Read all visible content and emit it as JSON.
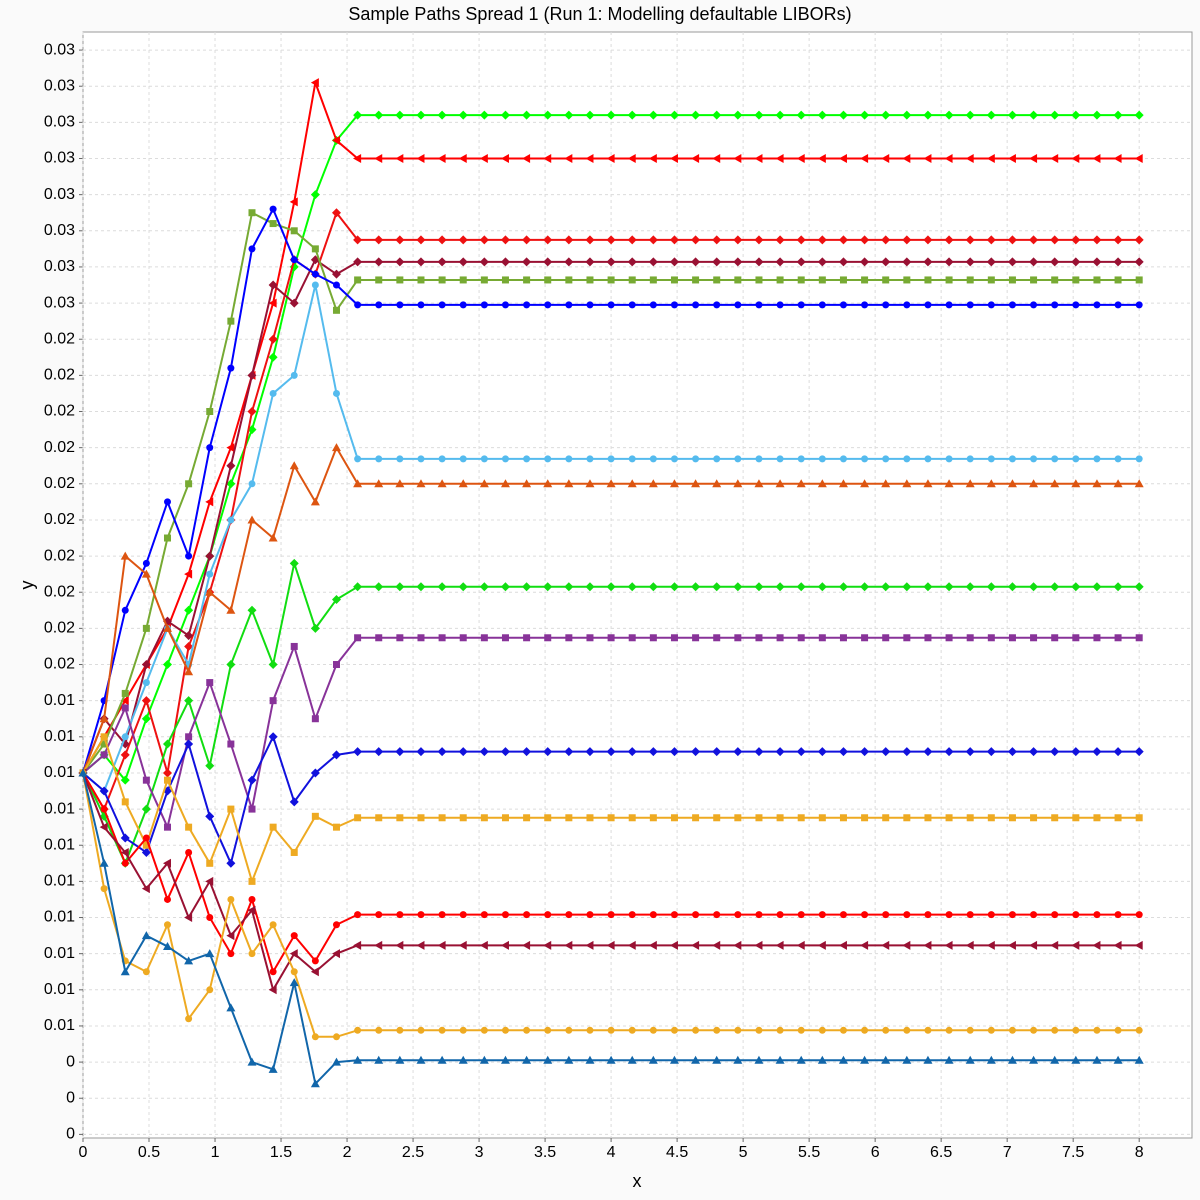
{
  "chart_data": {
    "type": "line",
    "title": "Sample Paths Spread 1 (Run 1: Modelling defaultable LIBORs)",
    "xlabel": "x",
    "ylabel": "y",
    "x": [
      0,
      0.16,
      0.32,
      0.48,
      0.64,
      0.8,
      0.96,
      1.12,
      1.28,
      1.44,
      1.6,
      1.76,
      1.92,
      2.08,
      2.24,
      2.4,
      2.56,
      2.72,
      2.88,
      3.04,
      3.2,
      3.36,
      3.52,
      3.68,
      3.84,
      4,
      4.16,
      4.32,
      4.48,
      4.64,
      4.8,
      4.96,
      5.12,
      5.28,
      5.44,
      5.6,
      5.76,
      5.92,
      6.08,
      6.24,
      6.4,
      6.56,
      6.72,
      6.88,
      7.04,
      7.2,
      7.36,
      7.52,
      7.68,
      7.84,
      8
    ],
    "xlim": [
      0,
      8.4
    ],
    "xticks": [
      0,
      0.5,
      1,
      1.5,
      2,
      2.5,
      3,
      3.5,
      4,
      4.5,
      5,
      5.5,
      6,
      6.5,
      7,
      7.5,
      8
    ],
    "ylim": [
      0.0019,
      0.0325
    ],
    "yticks": [
      {
        "value": 0.002,
        "label": "0"
      },
      {
        "value": 0.003,
        "label": "0"
      },
      {
        "value": 0.004,
        "label": "0"
      },
      {
        "value": 0.005,
        "label": "0.01"
      },
      {
        "value": 0.006,
        "label": "0.01"
      },
      {
        "value": 0.007,
        "label": "0.01"
      },
      {
        "value": 0.008,
        "label": "0.01"
      },
      {
        "value": 0.009,
        "label": "0.01"
      },
      {
        "value": 0.01,
        "label": "0.01"
      },
      {
        "value": 0.011,
        "label": "0.01"
      },
      {
        "value": 0.012,
        "label": "0.01"
      },
      {
        "value": 0.013,
        "label": "0.01"
      },
      {
        "value": 0.014,
        "label": "0.01"
      },
      {
        "value": 0.015,
        "label": "0.02"
      },
      {
        "value": 0.016,
        "label": "0.02"
      },
      {
        "value": 0.017,
        "label": "0.02"
      },
      {
        "value": 0.018,
        "label": "0.02"
      },
      {
        "value": 0.019,
        "label": "0.02"
      },
      {
        "value": 0.02,
        "label": "0.02"
      },
      {
        "value": 0.021,
        "label": "0.02"
      },
      {
        "value": 0.022,
        "label": "0.02"
      },
      {
        "value": 0.023,
        "label": "0.02"
      },
      {
        "value": 0.024,
        "label": "0.02"
      },
      {
        "value": 0.025,
        "label": "0.03"
      },
      {
        "value": 0.026,
        "label": "0.03"
      },
      {
        "value": 0.027,
        "label": "0.03"
      },
      {
        "value": 0.028,
        "label": "0.03"
      },
      {
        "value": 0.029,
        "label": "0.03"
      },
      {
        "value": 0.03,
        "label": "0.03"
      },
      {
        "value": 0.031,
        "label": "0.03"
      },
      {
        "value": 0.032,
        "label": "0.03"
      }
    ],
    "grid": true,
    "series": [
      {
        "color": "#00ff00",
        "marker": "diamond",
        "values": [
          0.012,
          0.0125,
          0.0118,
          0.0135,
          0.015,
          0.0165,
          0.018,
          0.02,
          0.0215,
          0.0235,
          0.026,
          0.028,
          0.0295,
          0.0302,
          0.0302,
          0.0302,
          0.0302,
          0.0302,
          0.0302,
          0.0302,
          0.0302,
          0.0302,
          0.0302,
          0.0302,
          0.0302,
          0.0302,
          0.0302,
          0.0302,
          0.0302,
          0.0302,
          0.0302,
          0.0302,
          0.0302,
          0.0302,
          0.0302,
          0.0302,
          0.0302,
          0.0302,
          0.0302,
          0.0302,
          0.0302,
          0.0302,
          0.0302,
          0.0302,
          0.0302,
          0.0302,
          0.0302,
          0.0302,
          0.0302,
          0.0302,
          0.0302
        ]
      },
      {
        "color": "#ff0000",
        "marker": "left",
        "values": [
          0.012,
          0.013,
          0.014,
          0.015,
          0.016,
          0.0175,
          0.0195,
          0.021,
          0.023,
          0.025,
          0.0278,
          0.0311,
          0.0295,
          0.029,
          0.029,
          0.029,
          0.029,
          0.029,
          0.029,
          0.029,
          0.029,
          0.029,
          0.029,
          0.029,
          0.029,
          0.029,
          0.029,
          0.029,
          0.029,
          0.029,
          0.029,
          0.029,
          0.029,
          0.029,
          0.029,
          0.029,
          0.029,
          0.029,
          0.029,
          0.029,
          0.029,
          0.029,
          0.029,
          0.029,
          0.029,
          0.029,
          0.029,
          0.029,
          0.029,
          0.029,
          0.029
        ]
      },
      {
        "color": "#ee1111",
        "marker": "diamond",
        "values": [
          0.012,
          0.011,
          0.0125,
          0.014,
          0.012,
          0.0155,
          0.017,
          0.019,
          0.022,
          0.024,
          0.0262,
          0.0258,
          0.0275,
          0.02675,
          0.02675,
          0.02675,
          0.02675,
          0.02675,
          0.02675,
          0.02675,
          0.02675,
          0.02675,
          0.02675,
          0.02675,
          0.02675,
          0.02675,
          0.02675,
          0.02675,
          0.02675,
          0.02675,
          0.02675,
          0.02675,
          0.02675,
          0.02675,
          0.02675,
          0.02675,
          0.02675,
          0.02675,
          0.02675,
          0.02675,
          0.02675,
          0.02675,
          0.02675,
          0.02675,
          0.02675,
          0.02675,
          0.02675,
          0.02675,
          0.02675,
          0.02675,
          0.02675
        ]
      },
      {
        "color": "#991133",
        "marker": "diamond",
        "values": [
          0.012,
          0.0135,
          0.0128,
          0.015,
          0.0162,
          0.0158,
          0.018,
          0.0205,
          0.023,
          0.0255,
          0.025,
          0.0262,
          0.0258,
          0.02614,
          0.02614,
          0.02614,
          0.02614,
          0.02614,
          0.02614,
          0.02614,
          0.02614,
          0.02614,
          0.02614,
          0.02614,
          0.02614,
          0.02614,
          0.02614,
          0.02614,
          0.02614,
          0.02614,
          0.02614,
          0.02614,
          0.02614,
          0.02614,
          0.02614,
          0.02614,
          0.02614,
          0.02614,
          0.02614,
          0.02614,
          0.02614,
          0.02614,
          0.02614,
          0.02614,
          0.02614,
          0.02614,
          0.02614,
          0.02614,
          0.02614,
          0.02614,
          0.02614
        ]
      },
      {
        "color": "#77aa33",
        "marker": "square",
        "values": [
          0.012,
          0.0128,
          0.0142,
          0.016,
          0.0185,
          0.02,
          0.022,
          0.0245,
          0.0275,
          0.0272,
          0.027,
          0.0265,
          0.0248,
          0.02564,
          0.02564,
          0.02564,
          0.02564,
          0.02564,
          0.02564,
          0.02564,
          0.02564,
          0.02564,
          0.02564,
          0.02564,
          0.02564,
          0.02564,
          0.02564,
          0.02564,
          0.02564,
          0.02564,
          0.02564,
          0.02564,
          0.02564,
          0.02564,
          0.02564,
          0.02564,
          0.02564,
          0.02564,
          0.02564,
          0.02564,
          0.02564,
          0.02564,
          0.02564,
          0.02564,
          0.02564,
          0.02564,
          0.02564,
          0.02564,
          0.02564,
          0.02564,
          0.02564
        ]
      },
      {
        "color": "#0000ff",
        "marker": "circle",
        "values": [
          0.012,
          0.014,
          0.0165,
          0.0178,
          0.0195,
          0.018,
          0.021,
          0.0232,
          0.0265,
          0.0276,
          0.0262,
          0.0258,
          0.0255,
          0.02495,
          0.02495,
          0.02495,
          0.02495,
          0.02495,
          0.02495,
          0.02495,
          0.02495,
          0.02495,
          0.02495,
          0.02495,
          0.02495,
          0.02495,
          0.02495,
          0.02495,
          0.02495,
          0.02495,
          0.02495,
          0.02495,
          0.02495,
          0.02495,
          0.02495,
          0.02495,
          0.02495,
          0.02495,
          0.02495,
          0.02495,
          0.02495,
          0.02495,
          0.02495,
          0.02495,
          0.02495,
          0.02495,
          0.02495,
          0.02495,
          0.02495,
          0.02495,
          0.02495
        ]
      },
      {
        "color": "#55bbee",
        "marker": "circle",
        "values": [
          0.012,
          0.0115,
          0.013,
          0.0145,
          0.016,
          0.015,
          0.0175,
          0.019,
          0.02,
          0.0225,
          0.023,
          0.0255,
          0.0225,
          0.02069,
          0.02069,
          0.02069,
          0.02069,
          0.02069,
          0.02069,
          0.02069,
          0.02069,
          0.02069,
          0.02069,
          0.02069,
          0.02069,
          0.02069,
          0.02069,
          0.02069,
          0.02069,
          0.02069,
          0.02069,
          0.02069,
          0.02069,
          0.02069,
          0.02069,
          0.02069,
          0.02069,
          0.02069,
          0.02069,
          0.02069,
          0.02069,
          0.02069,
          0.02069,
          0.02069,
          0.02069,
          0.02069,
          0.02069,
          0.02069,
          0.02069,
          0.02069,
          0.02069
        ]
      },
      {
        "color": "#dd5511",
        "marker": "triangle",
        "values": [
          0.012,
          0.0135,
          0.018,
          0.0175,
          0.016,
          0.0148,
          0.017,
          0.0165,
          0.019,
          0.0185,
          0.0205,
          0.0195,
          0.021,
          0.02,
          0.02,
          0.02,
          0.02,
          0.02,
          0.02,
          0.02,
          0.02,
          0.02,
          0.02,
          0.02,
          0.02,
          0.02,
          0.02,
          0.02,
          0.02,
          0.02,
          0.02,
          0.02,
          0.02,
          0.02,
          0.02,
          0.02,
          0.02,
          0.02,
          0.02,
          0.02,
          0.02,
          0.02,
          0.02,
          0.02,
          0.02,
          0.02,
          0.02,
          0.02,
          0.02,
          0.02,
          0.02
        ]
      },
      {
        "color": "#11dd11",
        "marker": "diamond",
        "values": [
          0.012,
          0.0108,
          0.0095,
          0.011,
          0.0128,
          0.014,
          0.0122,
          0.015,
          0.0165,
          0.015,
          0.0178,
          0.016,
          0.0168,
          0.01715,
          0.01715,
          0.01715,
          0.01715,
          0.01715,
          0.01715,
          0.01715,
          0.01715,
          0.01715,
          0.01715,
          0.01715,
          0.01715,
          0.01715,
          0.01715,
          0.01715,
          0.01715,
          0.01715,
          0.01715,
          0.01715,
          0.01715,
          0.01715,
          0.01715,
          0.01715,
          0.01715,
          0.01715,
          0.01715,
          0.01715,
          0.01715,
          0.01715,
          0.01715,
          0.01715,
          0.01715,
          0.01715,
          0.01715,
          0.01715,
          0.01715,
          0.01715,
          0.01715
        ]
      },
      {
        "color": "#883399",
        "marker": "square",
        "values": [
          0.012,
          0.0125,
          0.0138,
          0.0118,
          0.0105,
          0.013,
          0.0145,
          0.0128,
          0.011,
          0.014,
          0.0155,
          0.0135,
          0.015,
          0.01574,
          0.01574,
          0.01574,
          0.01574,
          0.01574,
          0.01574,
          0.01574,
          0.01574,
          0.01574,
          0.01574,
          0.01574,
          0.01574,
          0.01574,
          0.01574,
          0.01574,
          0.01574,
          0.01574,
          0.01574,
          0.01574,
          0.01574,
          0.01574,
          0.01574,
          0.01574,
          0.01574,
          0.01574,
          0.01574,
          0.01574,
          0.01574,
          0.01574,
          0.01574,
          0.01574,
          0.01574,
          0.01574,
          0.01574,
          0.01574,
          0.01574,
          0.01574,
          0.01574
        ]
      },
      {
        "color": "#1111dd",
        "marker": "diamond",
        "values": [
          0.012,
          0.0115,
          0.0102,
          0.0098,
          0.0115,
          0.0128,
          0.0108,
          0.0095,
          0.0118,
          0.013,
          0.0112,
          0.012,
          0.0125,
          0.01259,
          0.01259,
          0.01259,
          0.01259,
          0.01259,
          0.01259,
          0.01259,
          0.01259,
          0.01259,
          0.01259,
          0.01259,
          0.01259,
          0.01259,
          0.01259,
          0.01259,
          0.01259,
          0.01259,
          0.01259,
          0.01259,
          0.01259,
          0.01259,
          0.01259,
          0.01259,
          0.01259,
          0.01259,
          0.01259,
          0.01259,
          0.01259,
          0.01259,
          0.01259,
          0.01259,
          0.01259,
          0.01259,
          0.01259,
          0.01259,
          0.01259,
          0.01259,
          0.01259
        ]
      },
      {
        "color": "#eeaa22",
        "marker": "square",
        "values": [
          0.012,
          0.013,
          0.0112,
          0.01,
          0.0118,
          0.0105,
          0.0095,
          0.011,
          0.009,
          0.0105,
          0.0098,
          0.0108,
          0.0105,
          0.01076,
          0.01076,
          0.01076,
          0.01076,
          0.01076,
          0.01076,
          0.01076,
          0.01076,
          0.01076,
          0.01076,
          0.01076,
          0.01076,
          0.01076,
          0.01076,
          0.01076,
          0.01076,
          0.01076,
          0.01076,
          0.01076,
          0.01076,
          0.01076,
          0.01076,
          0.01076,
          0.01076,
          0.01076,
          0.01076,
          0.01076,
          0.01076,
          0.01076,
          0.01076,
          0.01076,
          0.01076,
          0.01076,
          0.01076,
          0.01076,
          0.01076,
          0.01076,
          0.01076
        ]
      },
      {
        "color": "#ff0000",
        "marker": "circle",
        "values": [
          0.012,
          0.011,
          0.0095,
          0.0102,
          0.0085,
          0.0098,
          0.008,
          0.007,
          0.0085,
          0.0065,
          0.0075,
          0.0068,
          0.0078,
          0.00808,
          0.00808,
          0.00808,
          0.00808,
          0.00808,
          0.00808,
          0.00808,
          0.00808,
          0.00808,
          0.00808,
          0.00808,
          0.00808,
          0.00808,
          0.00808,
          0.00808,
          0.00808,
          0.00808,
          0.00808,
          0.00808,
          0.00808,
          0.00808,
          0.00808,
          0.00808,
          0.00808,
          0.00808,
          0.00808,
          0.00808,
          0.00808,
          0.00808,
          0.00808,
          0.00808,
          0.00808,
          0.00808,
          0.00808,
          0.00808,
          0.00808,
          0.00808,
          0.00808
        ]
      },
      {
        "color": "#991133",
        "marker": "left",
        "values": [
          0.012,
          0.0105,
          0.0098,
          0.0088,
          0.0095,
          0.008,
          0.009,
          0.0075,
          0.0082,
          0.006,
          0.007,
          0.0065,
          0.007,
          0.00723,
          0.00723,
          0.00723,
          0.00723,
          0.00723,
          0.00723,
          0.00723,
          0.00723,
          0.00723,
          0.00723,
          0.00723,
          0.00723,
          0.00723,
          0.00723,
          0.00723,
          0.00723,
          0.00723,
          0.00723,
          0.00723,
          0.00723,
          0.00723,
          0.00723,
          0.00723,
          0.00723,
          0.00723,
          0.00723,
          0.00723,
          0.00723,
          0.00723,
          0.00723,
          0.00723,
          0.00723,
          0.00723,
          0.00723,
          0.00723,
          0.00723,
          0.00723,
          0.00723
        ]
      },
      {
        "color": "#eeaa22",
        "marker": "circle",
        "values": [
          0.012,
          0.0088,
          0.0068,
          0.0065,
          0.0078,
          0.0052,
          0.006,
          0.0085,
          0.007,
          0.0078,
          0.0065,
          0.0047,
          0.0047,
          0.00488,
          0.00488,
          0.00488,
          0.00488,
          0.00488,
          0.00488,
          0.00488,
          0.00488,
          0.00488,
          0.00488,
          0.00488,
          0.00488,
          0.00488,
          0.00488,
          0.00488,
          0.00488,
          0.00488,
          0.00488,
          0.00488,
          0.00488,
          0.00488,
          0.00488,
          0.00488,
          0.00488,
          0.00488,
          0.00488,
          0.00488,
          0.00488,
          0.00488,
          0.00488,
          0.00488,
          0.00488,
          0.00488,
          0.00488,
          0.00488,
          0.00488,
          0.00488,
          0.00488
        ]
      },
      {
        "color": "#1166aa",
        "marker": "triangle",
        "values": [
          0.012,
          0.0095,
          0.0065,
          0.0075,
          0.0072,
          0.0068,
          0.007,
          0.0055,
          0.004,
          0.0038,
          0.0062,
          0.0034,
          0.004,
          0.00405,
          0.00405,
          0.00405,
          0.00405,
          0.00405,
          0.00405,
          0.00405,
          0.00405,
          0.00405,
          0.00405,
          0.00405,
          0.00405,
          0.00405,
          0.00405,
          0.00405,
          0.00405,
          0.00405,
          0.00405,
          0.00405,
          0.00405,
          0.00405,
          0.00405,
          0.00405,
          0.00405,
          0.00405,
          0.00405,
          0.00405,
          0.00405,
          0.00405,
          0.00405,
          0.00405,
          0.00405,
          0.00405,
          0.00405,
          0.00405,
          0.00405,
          0.00405,
          0.00405
        ]
      }
    ]
  }
}
